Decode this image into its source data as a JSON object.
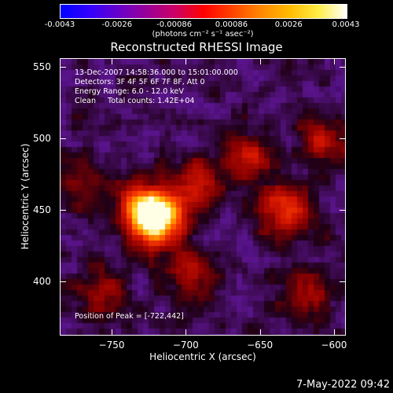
{
  "colorbar": {
    "colors": [
      "#0000ff",
      "#3300ff",
      "#6600cc",
      "#990099",
      "#cc0066",
      "#ff0000",
      "#ff4400",
      "#ff8800",
      "#ffbb00",
      "#ffee44",
      "#ffffff"
    ],
    "tick_labels": [
      "-0.0043",
      "-0.0026",
      "-0.00086",
      "0.00086",
      "0.0026",
      "0.0043"
    ],
    "units_label": "(photons cm⁻² s⁻¹ asec⁻²)"
  },
  "title": "Reconstructed RHESSI Image",
  "info": {
    "line1": "13-Dec-2007 14:58:36.000 to 15:01:00.000",
    "line2": "Detectors: 3F 4F 5F 6F 7F 8F, Att 0",
    "line3": "Energy Range: 6.0 - 12.0 keV",
    "line4": "Clean     Total counts: 1.42E+04",
    "peak": "Position of Peak = [-722,442]"
  },
  "axes": {
    "x_title": "Heliocentric X (arcsec)",
    "y_title": "Heliocentric Y (arcsec)",
    "x_ticks": [
      {
        "value": -750,
        "label": "−750"
      },
      {
        "value": -700,
        "label": "−700"
      },
      {
        "value": -650,
        "label": "−650"
      },
      {
        "value": -600,
        "label": "−600"
      }
    ],
    "y_ticks": [
      {
        "value": 550,
        "label": "550"
      },
      {
        "value": 500,
        "label": "500"
      },
      {
        "value": 450,
        "label": "450"
      },
      {
        "value": 400,
        "label": "400"
      }
    ],
    "xlim": [
      -785,
      -592
    ],
    "ylim": [
      362,
      556
    ]
  },
  "chart_data": {
    "type": "heatmap",
    "title": "Reconstructed RHESSI Image",
    "xlabel": "Heliocentric X (arcsec)",
    "ylabel": "Heliocentric Y (arcsec)",
    "xlim": [
      -785,
      -592
    ],
    "ylim": [
      362,
      556
    ],
    "colorbar_range": [
      -0.0043,
      0.0043
    ],
    "peak": {
      "x": -722,
      "y": 442
    },
    "sources": [
      {
        "x": -722,
        "y": 445,
        "strength": 1.0
      },
      {
        "x": -730,
        "y": 455,
        "strength": 0.6
      },
      {
        "x": -635,
        "y": 452,
        "strength": 0.55
      },
      {
        "x": -695,
        "y": 470,
        "strength": 0.4
      },
      {
        "x": -660,
        "y": 490,
        "strength": 0.4
      },
      {
        "x": -700,
        "y": 410,
        "strength": 0.35
      },
      {
        "x": -620,
        "y": 395,
        "strength": 0.3
      },
      {
        "x": -760,
        "y": 395,
        "strength": 0.3
      },
      {
        "x": -610,
        "y": 500,
        "strength": 0.35
      },
      {
        "x": -770,
        "y": 470,
        "strength": 0.25
      }
    ]
  },
  "timestamp": "7-May-2022 09:42"
}
